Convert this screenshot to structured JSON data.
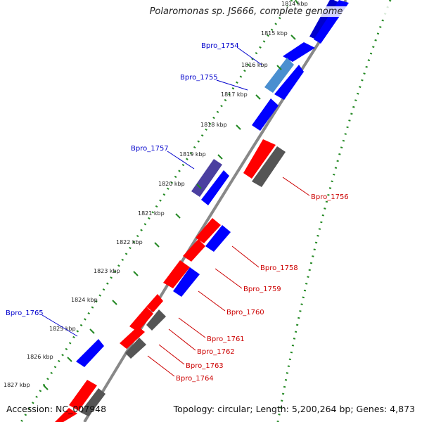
{
  "header": {
    "title": "Polaromonas sp. JS666, complete genome"
  },
  "footer": {
    "accession": "Accession: NC_007948",
    "topology": "Topology: circular; Length: 5,200,264 bp; Genes: 4,873"
  },
  "colors": {
    "forward_gene": "#0000ff",
    "reverse_gene": "#ff0000",
    "rna_gene": "#555555",
    "backbone": "#888888",
    "dotted_guide": "#228822",
    "label_forward": "#0000cc",
    "label_reverse": "#cc0000"
  },
  "ruler": {
    "ticks": [
      "1814 kbp",
      "1815 kbp",
      "1816 kbp",
      "1817 kbp",
      "1818 kbp",
      "1819 kbp",
      "1820 kbp",
      "1821 kbp",
      "1822 kbp",
      "1823 kbp",
      "1824 kbp",
      "1825 kbp",
      "1826 kbp",
      "1827 kbp"
    ]
  },
  "gene_labels": {
    "forward": [
      "Bpro_1754",
      "Bpro_1755",
      "Bpro_1757",
      "Bpro_1765"
    ],
    "reverse": [
      "Bpro_1756",
      "Bpro_1758",
      "Bpro_1759",
      "Bpro_1760",
      "Bpro_1761",
      "Bpro_1762",
      "Bpro_1763",
      "Bpro_1764"
    ]
  }
}
